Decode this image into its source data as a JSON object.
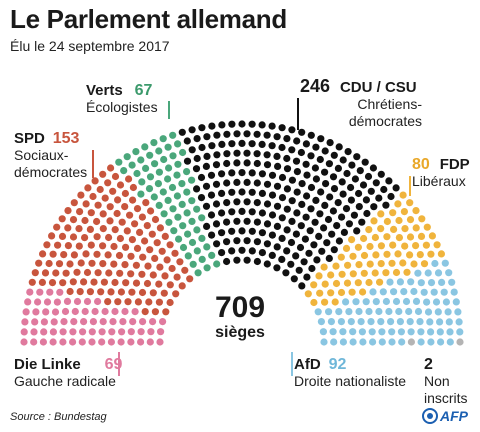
{
  "title": "Le Parlement allemand",
  "subtitle": "Élu le 24 septembre 2017",
  "total": {
    "value": "709",
    "unit": "sièges"
  },
  "source": "Source : Bundestag",
  "logo_text": "AFP",
  "chart_data": {
    "type": "hemicycle",
    "total_seats": 709,
    "parties": [
      {
        "name": "Die Linke",
        "seats": 69,
        "description": "Gauche radicale",
        "color": "#e07a9e"
      },
      {
        "name": "SPD",
        "seats": 153,
        "description": "Sociaux-démocrates",
        "color": "#c8553d"
      },
      {
        "name": "Verts",
        "seats": 67,
        "description": "Écologistes",
        "color": "#4aa77b"
      },
      {
        "name": "CDU / CSU",
        "seats": 246,
        "description": "Chrétiens-démocrates",
        "color": "#111111"
      },
      {
        "name": "FDP",
        "seats": 80,
        "description": "Libéraux",
        "color": "#f0b43c"
      },
      {
        "name": "AfD",
        "seats": 92,
        "description": "Droite nationaliste",
        "color": "#8ac6e2"
      },
      {
        "name": "",
        "seats": 2,
        "description": "Non inscrits",
        "color": "#b4b4b4"
      }
    ]
  }
}
